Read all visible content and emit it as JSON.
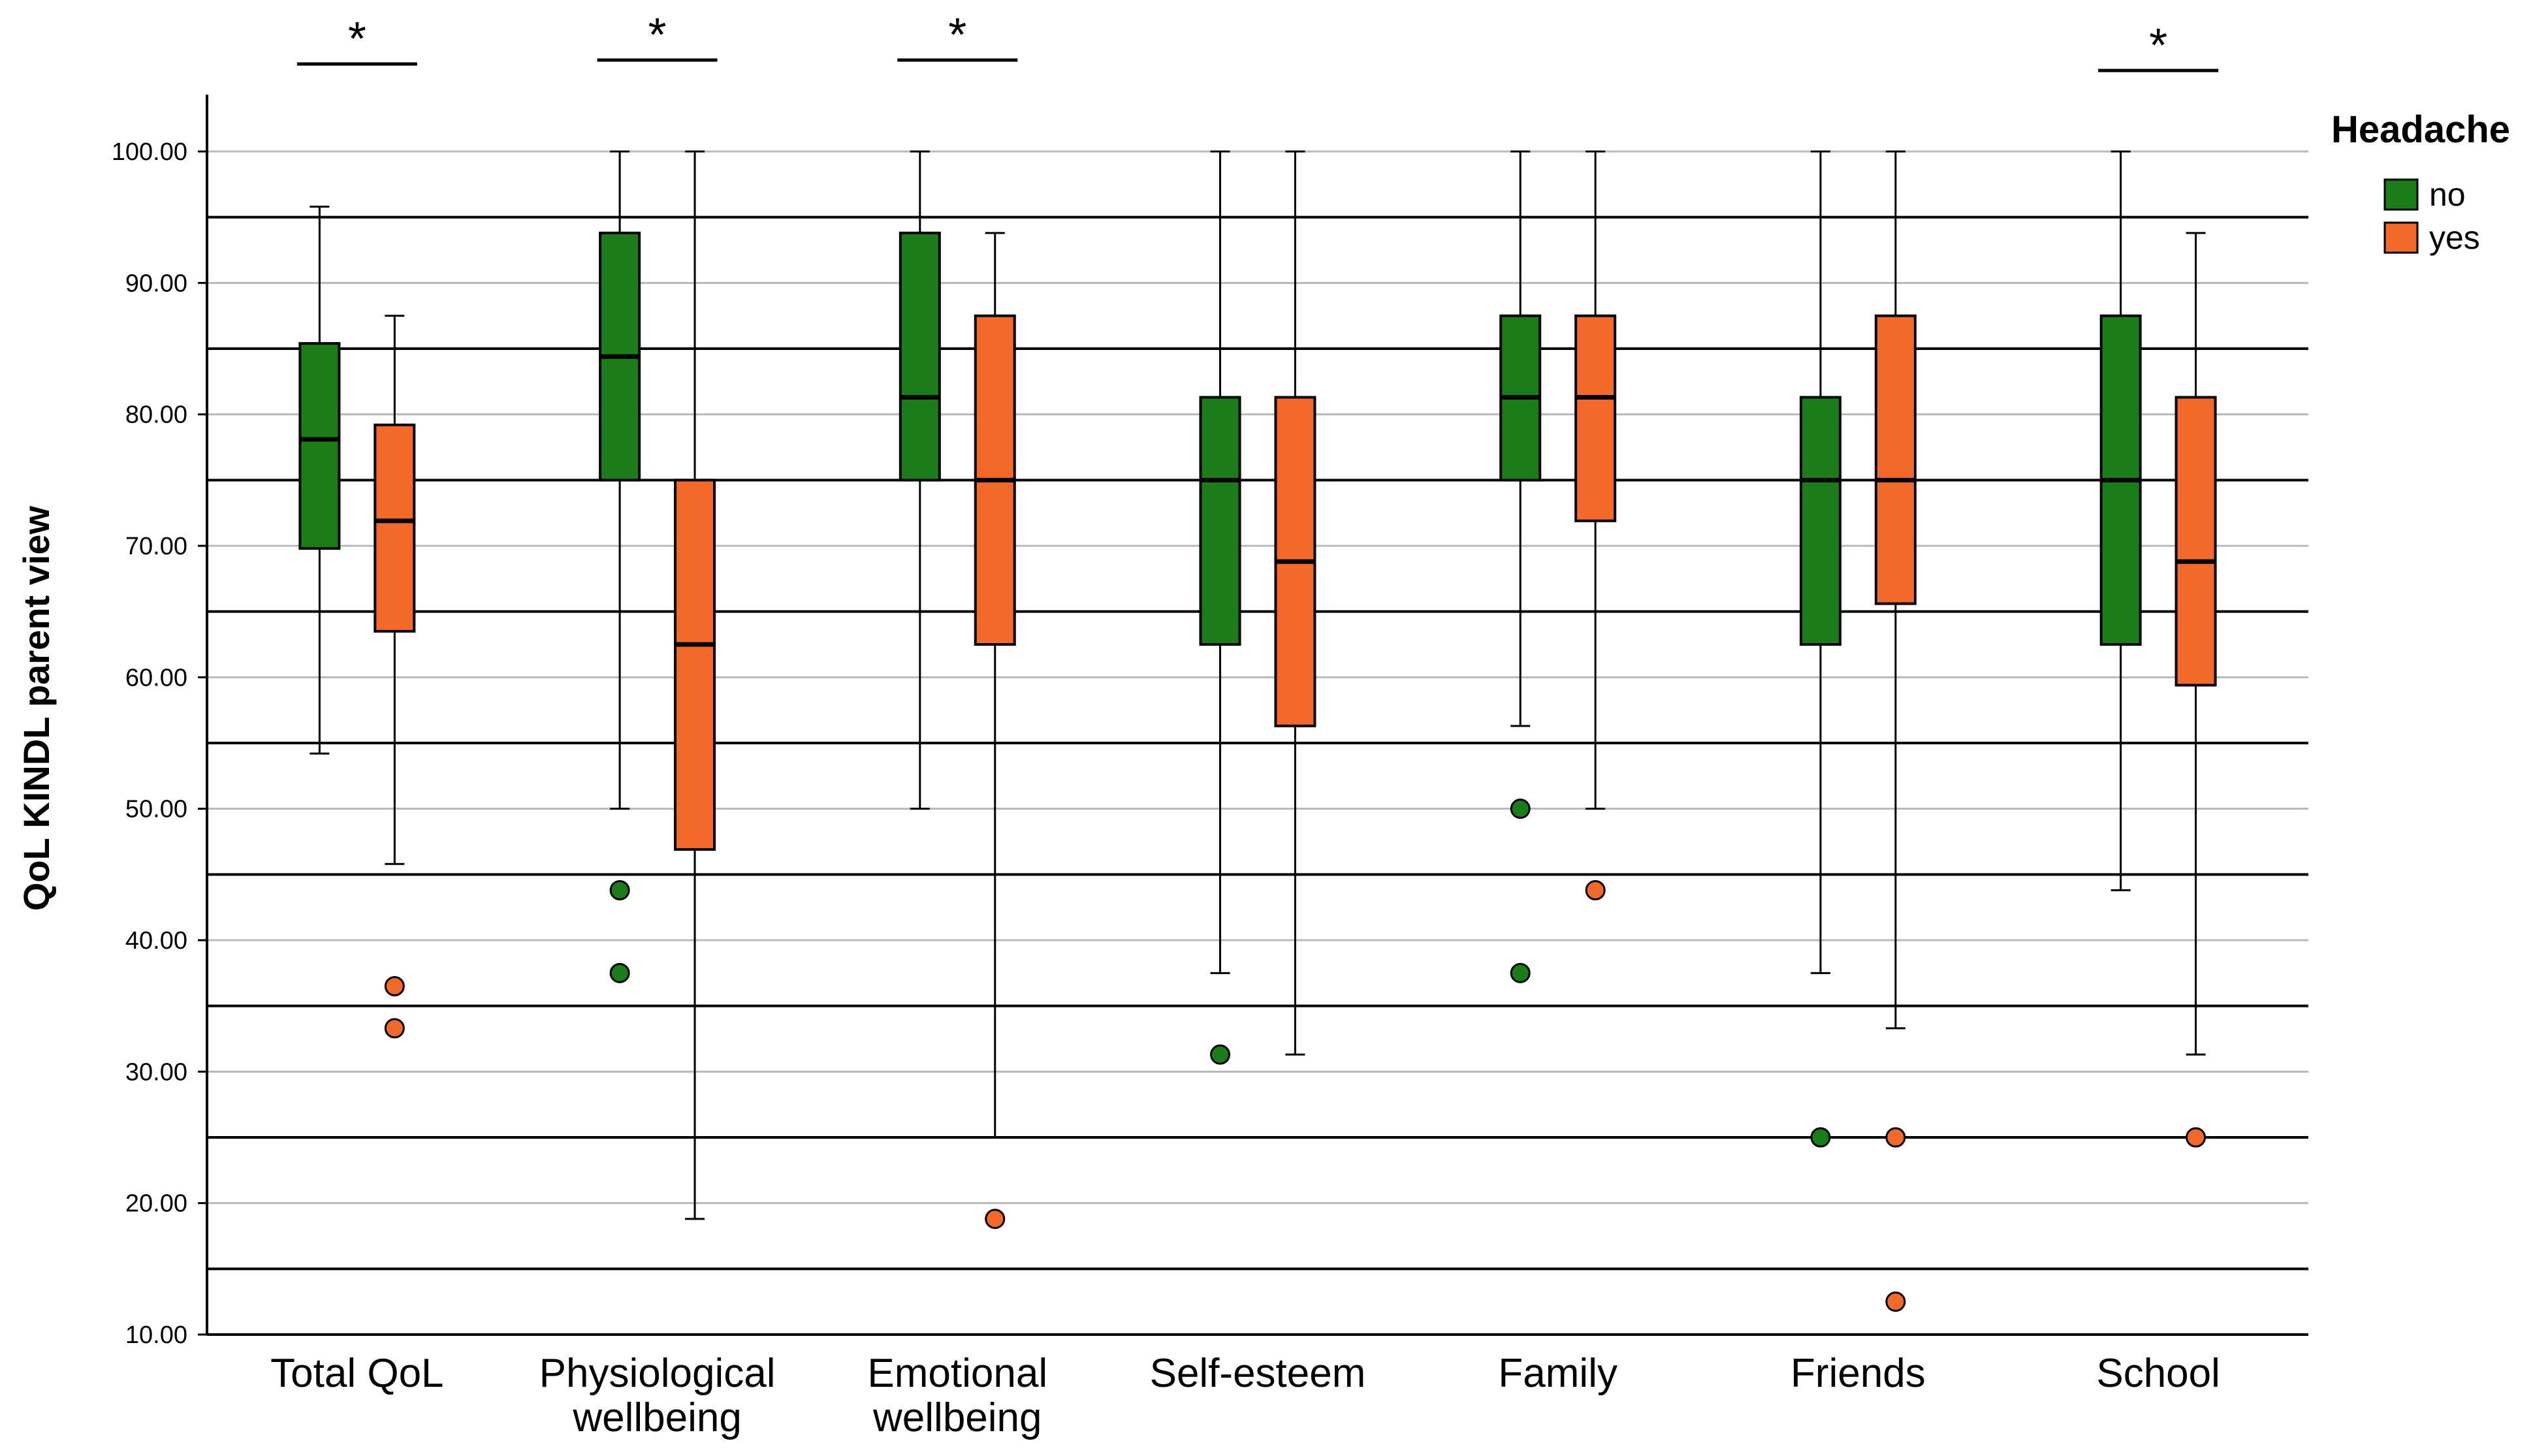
{
  "chart_data": {
    "type": "boxplot",
    "ylabel": "QoL KINDL parent view",
    "ylim": [
      10,
      100
    ],
    "yticks": [
      10,
      20,
      30,
      40,
      50,
      60,
      70,
      80,
      90,
      100
    ],
    "ytick_labels": [
      "10.00",
      "20.00",
      "30.00",
      "40.00",
      "50.00",
      "60.00",
      "70.00",
      "80.00",
      "90.00",
      "100.00"
    ],
    "reference_lines": [
      15,
      25,
      35,
      45,
      55,
      65,
      75,
      85,
      95
    ],
    "categories": [
      [
        "Total QoL"
      ],
      [
        "Physiological",
        "wellbeing"
      ],
      [
        "Emotional",
        "wellbeing"
      ],
      [
        "Self-esteem"
      ],
      [
        "Family"
      ],
      [
        "Friends"
      ],
      [
        "School"
      ]
    ],
    "legend": {
      "title": "Headache",
      "entries": [
        {
          "label": "no",
          "color": "#1a7d1a"
        },
        {
          "label": "yes",
          "color": "#f2692a"
        }
      ]
    },
    "series": [
      {
        "name": "no",
        "color": "#1a7d1a",
        "boxes": [
          {
            "min": 54.2,
            "q1": 69.8,
            "median": 78.1,
            "q3": 85.4,
            "max": 95.8,
            "outliers": []
          },
          {
            "min": 50.0,
            "q1": 75.0,
            "median": 84.4,
            "q3": 93.8,
            "max": 100.0,
            "outliers": [
              43.8,
              37.5
            ]
          },
          {
            "min": 50.0,
            "q1": 75.0,
            "median": 81.3,
            "q3": 93.8,
            "max": 100.0,
            "outliers": []
          },
          {
            "min": 37.5,
            "q1": 62.5,
            "median": 75.0,
            "q3": 81.3,
            "max": 100.0,
            "outliers": [
              31.3
            ]
          },
          {
            "min": 56.3,
            "q1": 75.0,
            "median": 81.3,
            "q3": 87.5,
            "max": 100.0,
            "outliers": [
              50.0,
              37.5
            ]
          },
          {
            "min": 37.5,
            "q1": 62.5,
            "median": 75.0,
            "q3": 81.3,
            "max": 100.0,
            "outliers": [
              25.0
            ]
          },
          {
            "min": 43.8,
            "q1": 62.5,
            "median": 75.0,
            "q3": 87.5,
            "max": 100.0,
            "outliers": []
          }
        ]
      },
      {
        "name": "yes",
        "color": "#f2692a",
        "boxes": [
          {
            "min": 45.8,
            "q1": 63.5,
            "median": 71.9,
            "q3": 79.2,
            "max": 87.5,
            "outliers": [
              36.5,
              33.3
            ]
          },
          {
            "min": 18.8,
            "q1": 46.9,
            "median": 62.5,
            "q3": 75.0,
            "max": 100.0,
            "outliers": []
          },
          {
            "min": 25.0,
            "q1": 62.5,
            "median": 75.0,
            "q3": 87.5,
            "max": 93.8,
            "outliers": [
              18.8
            ]
          },
          {
            "min": 31.3,
            "q1": 56.3,
            "median": 68.8,
            "q3": 81.3,
            "max": 100.0,
            "outliers": []
          },
          {
            "min": 50.0,
            "q1": 71.9,
            "median": 81.3,
            "q3": 87.5,
            "max": 100.0,
            "outliers": [
              43.8
            ]
          },
          {
            "min": 33.3,
            "q1": 65.6,
            "median": 75.0,
            "q3": 87.5,
            "max": 100.0,
            "outliers": [
              25.0,
              12.5
            ]
          },
          {
            "min": 31.3,
            "q1": 59.4,
            "median": 68.8,
            "q3": 81.3,
            "max": 93.8,
            "outliers": [
              25.0
            ]
          }
        ]
      }
    ],
    "significance": [
      {
        "category_index": 0,
        "marker": "*"
      },
      {
        "category_index": 1,
        "marker": "*"
      },
      {
        "category_index": 2,
        "marker": "*"
      },
      {
        "category_index": 6,
        "marker": "*"
      }
    ]
  }
}
